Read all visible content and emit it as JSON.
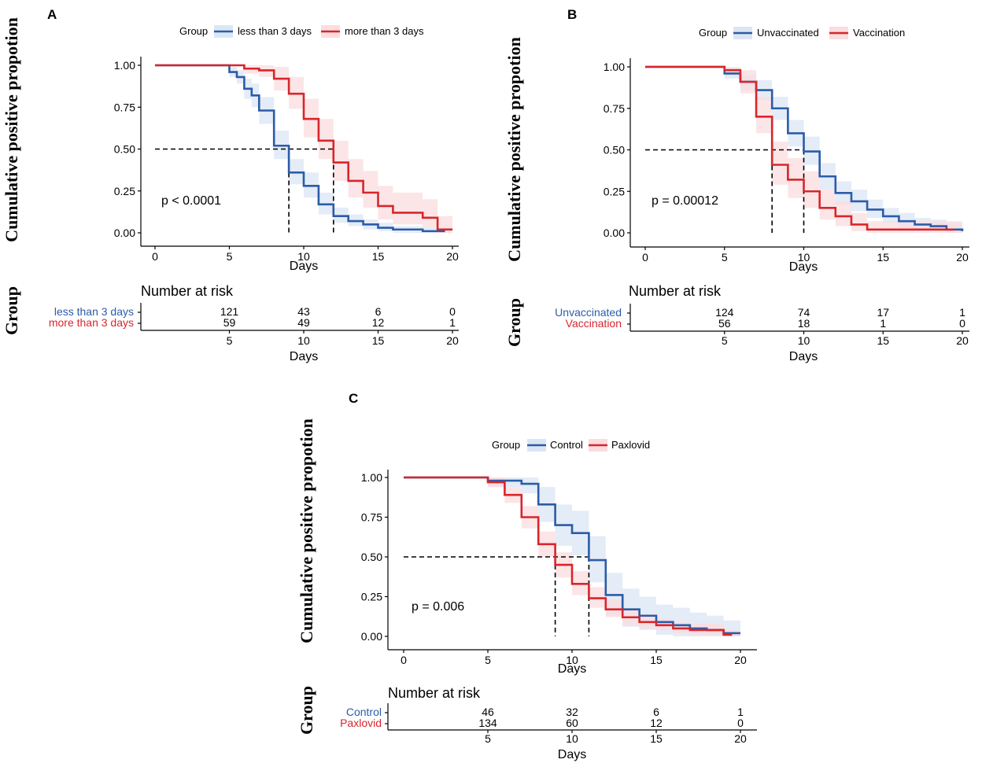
{
  "colors": {
    "blue": "#2b5ca8",
    "red": "#d7262b",
    "blue_band": "#dbe6f4",
    "red_band": "#fbdcdf",
    "axis": "#000000"
  },
  "common": {
    "y_axis_title": "Cumulative positive propotion",
    "group_axis_title": "Group",
    "x_axis_title": "Days",
    "legend_title": "Group",
    "risk_title": "Number at risk"
  },
  "chart_data": [
    {
      "panel": "A",
      "type": "line",
      "subtype": "kaplan-meier step",
      "xlabel": "Days",
      "ylabel": "Cumulative positive propotion",
      "xlim": [
        0,
        20
      ],
      "ylim": [
        0,
        1
      ],
      "x_ticks": [
        "0",
        "5",
        "10",
        "15",
        "20"
      ],
      "y_ticks": [
        "0.00",
        "0.25",
        "0.50",
        "0.75",
        "1.00"
      ],
      "pvalue": "p < 0.0001",
      "median_lines": [
        9,
        12
      ],
      "series": [
        {
          "name": "less than 3 days",
          "color": "blue",
          "x": [
            0,
            5,
            5.5,
            6,
            6.5,
            7,
            8,
            9,
            10,
            11,
            12,
            13,
            14,
            15,
            16,
            17,
            18,
            19
          ],
          "y": [
            1,
            0.96,
            0.93,
            0.86,
            0.82,
            0.73,
            0.52,
            0.36,
            0.28,
            0.17,
            0.1,
            0.07,
            0.05,
            0.03,
            0.02,
            0.02,
            0.01,
            0.01
          ],
          "lower": [
            1,
            0.93,
            0.89,
            0.8,
            0.75,
            0.65,
            0.44,
            0.29,
            0.21,
            0.11,
            0.06,
            0.04,
            0.02,
            0.01,
            0.0,
            0.0,
            0.0,
            0.0
          ],
          "upper": [
            1,
            0.99,
            0.97,
            0.92,
            0.89,
            0.81,
            0.61,
            0.44,
            0.36,
            0.24,
            0.15,
            0.11,
            0.08,
            0.06,
            0.04,
            0.04,
            0.03,
            0.03
          ]
        },
        {
          "name": "more than 3 days",
          "color": "red",
          "x": [
            0,
            6,
            7,
            8,
            9,
            10,
            11,
            12,
            13,
            14,
            15,
            16,
            17,
            18,
            19,
            20
          ],
          "y": [
            1,
            0.98,
            0.97,
            0.92,
            0.83,
            0.68,
            0.55,
            0.42,
            0.31,
            0.24,
            0.16,
            0.12,
            0.12,
            0.09,
            0.02,
            0.02
          ],
          "lower": [
            1,
            0.95,
            0.93,
            0.85,
            0.74,
            0.57,
            0.44,
            0.31,
            0.21,
            0.15,
            0.08,
            0.05,
            0.05,
            0.03,
            0.0,
            0.0
          ],
          "upper": [
            1,
            1.0,
            1.0,
            0.99,
            0.93,
            0.8,
            0.68,
            0.55,
            0.44,
            0.37,
            0.28,
            0.24,
            0.24,
            0.2,
            0.1,
            0.1
          ]
        }
      ],
      "risk_table": {
        "ticks": [
          "5",
          "10",
          "15",
          "20"
        ],
        "rows": [
          {
            "label": "less than 3 days",
            "color": "blue",
            "values": [
              "121",
              "43",
              "6",
              "0"
            ]
          },
          {
            "label": "more than 3 days",
            "color": "red",
            "values": [
              "59",
              "49",
              "12",
              "1"
            ]
          }
        ]
      }
    },
    {
      "panel": "B",
      "type": "line",
      "subtype": "kaplan-meier step",
      "xlabel": "Days",
      "ylabel": "Cumulative positive propotion",
      "xlim": [
        0,
        20
      ],
      "ylim": [
        0,
        1
      ],
      "x_ticks": [
        "0",
        "5",
        "10",
        "15",
        "20"
      ],
      "y_ticks": [
        "0.00",
        "0.25",
        "0.50",
        "0.75",
        "1.00"
      ],
      "pvalue": "p = 0.00012",
      "median_lines": [
        8,
        10
      ],
      "series": [
        {
          "name": "Unvaccinated",
          "color": "blue",
          "x": [
            0,
            5,
            6,
            7,
            8,
            9,
            10,
            11,
            12,
            13,
            14,
            15,
            16,
            17,
            18,
            19,
            20
          ],
          "y": [
            1,
            0.96,
            0.91,
            0.86,
            0.75,
            0.6,
            0.49,
            0.34,
            0.24,
            0.19,
            0.14,
            0.1,
            0.07,
            0.05,
            0.04,
            0.02,
            0.01
          ],
          "lower": [
            1,
            0.93,
            0.86,
            0.8,
            0.68,
            0.52,
            0.41,
            0.26,
            0.17,
            0.13,
            0.09,
            0.06,
            0.03,
            0.02,
            0.01,
            0.0,
            0.0
          ],
          "upper": [
            1,
            0.99,
            0.95,
            0.92,
            0.82,
            0.68,
            0.58,
            0.42,
            0.31,
            0.26,
            0.2,
            0.15,
            0.12,
            0.09,
            0.08,
            0.06,
            0.04
          ]
        },
        {
          "name": "Vaccination",
          "color": "red",
          "x": [
            0,
            5,
            6,
            7,
            8,
            9,
            10,
            11,
            12,
            13,
            14,
            15,
            19
          ],
          "y": [
            1,
            0.98,
            0.91,
            0.7,
            0.41,
            0.32,
            0.25,
            0.15,
            0.1,
            0.05,
            0.02,
            0.02,
            0.02
          ],
          "lower": [
            1,
            0.95,
            0.84,
            0.6,
            0.29,
            0.21,
            0.15,
            0.08,
            0.04,
            0.01,
            0.0,
            0.0,
            0.0
          ],
          "upper": [
            1,
            1.0,
            0.98,
            0.82,
            0.55,
            0.45,
            0.37,
            0.26,
            0.19,
            0.12,
            0.07,
            0.07,
            0.07
          ]
        }
      ],
      "risk_table": {
        "ticks": [
          "5",
          "10",
          "15",
          "20"
        ],
        "rows": [
          {
            "label": "Unvaccinated",
            "color": "blue",
            "values": [
              "124",
              "74",
              "17",
              "1"
            ]
          },
          {
            "label": "Vaccination",
            "color": "red",
            "values": [
              "56",
              "18",
              "1",
              "0"
            ]
          }
        ]
      }
    },
    {
      "panel": "C",
      "type": "line",
      "subtype": "kaplan-meier step",
      "xlabel": "Days",
      "ylabel": "Cumulative positive propotion",
      "xlim": [
        0,
        20
      ],
      "ylim": [
        0,
        1
      ],
      "x_ticks": [
        "0",
        "5",
        "10",
        "15",
        "20"
      ],
      "y_ticks": [
        "0.00",
        "0.25",
        "0.50",
        "0.75",
        "1.00"
      ],
      "pvalue": "p = 0.006",
      "median_lines": [
        9,
        11
      ],
      "series": [
        {
          "name": "Control",
          "color": "blue",
          "x": [
            0,
            5,
            6,
            7,
            8,
            9,
            10,
            11,
            12,
            13,
            14,
            15,
            16,
            17,
            18,
            19,
            20
          ],
          "y": [
            1,
            0.98,
            0.98,
            0.96,
            0.83,
            0.7,
            0.65,
            0.48,
            0.26,
            0.17,
            0.13,
            0.09,
            0.07,
            0.05,
            0.04,
            0.02,
            0.02
          ],
          "lower": [
            1,
            0.94,
            0.94,
            0.9,
            0.72,
            0.57,
            0.51,
            0.34,
            0.13,
            0.06,
            0.04,
            0.01,
            0.0,
            0.0,
            0.0,
            0.0,
            0.0
          ],
          "upper": [
            1,
            1.0,
            1.0,
            1.0,
            0.94,
            0.83,
            0.79,
            0.63,
            0.4,
            0.3,
            0.25,
            0.2,
            0.18,
            0.15,
            0.13,
            0.1,
            0.06
          ]
        },
        {
          "name": "Paxlovid",
          "color": "red",
          "x": [
            0,
            5,
            6,
            7,
            8,
            9,
            10,
            11,
            12,
            13,
            14,
            15,
            16,
            17,
            18,
            19
          ],
          "y": [
            1,
            0.97,
            0.89,
            0.75,
            0.58,
            0.45,
            0.33,
            0.24,
            0.17,
            0.12,
            0.09,
            0.07,
            0.05,
            0.04,
            0.04,
            0.01
          ],
          "lower": [
            1,
            0.94,
            0.84,
            0.68,
            0.5,
            0.37,
            0.26,
            0.18,
            0.12,
            0.07,
            0.05,
            0.04,
            0.02,
            0.01,
            0.01,
            0.0
          ],
          "upper": [
            1,
            1.0,
            0.94,
            0.82,
            0.66,
            0.53,
            0.41,
            0.31,
            0.23,
            0.18,
            0.14,
            0.11,
            0.09,
            0.08,
            0.08,
            0.04
          ]
        }
      ],
      "risk_table": {
        "ticks": [
          "5",
          "10",
          "15",
          "20"
        ],
        "rows": [
          {
            "label": "Control",
            "color": "blue",
            "values": [
              "46",
              "32",
              "6",
              "1"
            ]
          },
          {
            "label": "Paxlovid",
            "color": "red",
            "values": [
              "134",
              "60",
              "12",
              "0"
            ]
          }
        ]
      }
    }
  ]
}
